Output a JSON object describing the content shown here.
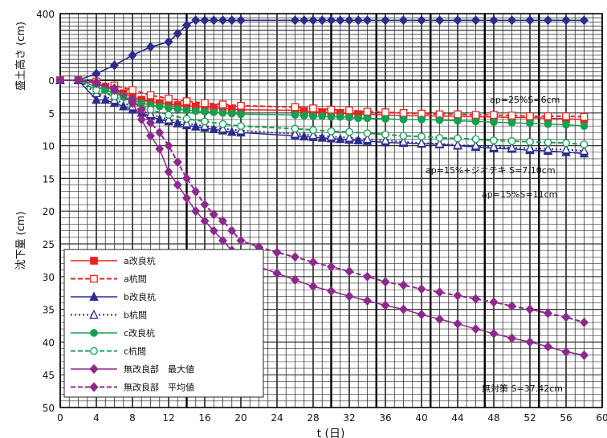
{
  "chart_data": [
    {
      "type": "line",
      "panel": "upper",
      "ylabel": "盛土高さ (cm)",
      "ylim": [
        0,
        400
      ],
      "yticks": [
        "400",
        "0"
      ],
      "series": [
        {
          "color": "#2c2c8c",
          "marker": "diamond",
          "x": [
            0,
            2,
            4,
            6,
            8,
            10,
            12,
            13,
            14,
            15,
            16,
            17,
            18,
            19,
            20,
            26,
            27,
            28,
            29,
            30,
            31,
            32,
            33,
            34,
            36,
            38,
            40,
            42,
            44,
            46,
            48,
            50,
            52,
            54,
            56,
            58
          ],
          "values": [
            0,
            0,
            40,
            90,
            150,
            200,
            230,
            280,
            330,
            360,
            360,
            360,
            360,
            360,
            360,
            360,
            360,
            360,
            360,
            360,
            360,
            360,
            360,
            360,
            360,
            360,
            360,
            360,
            360,
            360,
            360,
            360,
            360,
            360,
            360,
            360
          ]
        }
      ]
    },
    {
      "type": "line",
      "panel": "lower",
      "xlabel": "t (日)",
      "ylabel": "沈下量 (cm)",
      "xlim": [
        0,
        60
      ],
      "ylim": [
        0,
        50
      ],
      "xticks": [
        "0",
        "4",
        "8",
        "12",
        "16",
        "20",
        "24",
        "28",
        "32",
        "36",
        "40",
        "44",
        "48",
        "52",
        "56",
        "60"
      ],
      "yticks": [
        "0",
        "5",
        "10",
        "15",
        "20",
        "25",
        "30",
        "35",
        "40",
        "45",
        "50"
      ],
      "grid": true,
      "legend_position": "lower-left",
      "series": [
        {
          "name": "a改良杭",
          "color": "#e8231e",
          "style": "solid",
          "marker": "square",
          "x": [
            0,
            2,
            4,
            5,
            6,
            7,
            8,
            9,
            10,
            11,
            12,
            13,
            14,
            15,
            16,
            17,
            18,
            19,
            20,
            26,
            27,
            28,
            29,
            30,
            31,
            32,
            33,
            34,
            36,
            38,
            40,
            42,
            44,
            46,
            48,
            50,
            52,
            54,
            56,
            58
          ],
          "values": [
            0,
            0,
            0.5,
            1.0,
            1.5,
            2.0,
            2.5,
            3.0,
            3.3,
            3.5,
            3.7,
            3.8,
            3.9,
            4.0,
            4.1,
            4.2,
            4.3,
            4.4,
            4.5,
            4.6,
            4.7,
            4.8,
            4.9,
            5.0,
            5.0,
            5.1,
            5.2,
            5.2,
            5.3,
            5.4,
            5.4,
            5.5,
            5.5,
            5.6,
            5.6,
            5.7,
            5.7,
            5.8,
            5.9,
            6.0
          ]
        },
        {
          "name": "a杭間",
          "color": "#e8231e",
          "style": "dashed",
          "marker": "open-square",
          "x": [
            0,
            2,
            4,
            6,
            8,
            10,
            12,
            14,
            16,
            18,
            20,
            26,
            28,
            30,
            32,
            34,
            36,
            38,
            40,
            42,
            44,
            46,
            48,
            50,
            52,
            54,
            56,
            58
          ],
          "values": [
            0,
            0,
            0.2,
            0.8,
            1.5,
            2.3,
            2.8,
            3.2,
            3.5,
            3.7,
            3.9,
            4.1,
            4.3,
            4.5,
            4.6,
            4.8,
            4.9,
            5.0,
            5.1,
            5.2,
            5.2,
            5.3,
            5.3,
            5.4,
            5.5,
            5.5,
            5.5,
            5.6
          ]
        },
        {
          "name": "b改良杭",
          "color": "#2c2c8c",
          "style": "solid",
          "marker": "triangle",
          "x": [
            0,
            2,
            4,
            5,
            6,
            7,
            8,
            9,
            10,
            11,
            12,
            13,
            14,
            15,
            16,
            17,
            18,
            19,
            20,
            26,
            27,
            28,
            29,
            30,
            31,
            32,
            33,
            34,
            36,
            38,
            40,
            42,
            44,
            46,
            48,
            50,
            52,
            54,
            56,
            58
          ],
          "values": [
            0,
            0,
            3.0,
            3.0,
            3.5,
            4.0,
            4.5,
            5.0,
            5.5,
            6.0,
            6.3,
            6.6,
            6.9,
            7.1,
            7.3,
            7.5,
            7.7,
            7.9,
            8.0,
            8.5,
            8.6,
            8.7,
            8.8,
            8.9,
            9.0,
            9.1,
            9.2,
            9.3,
            9.5,
            9.6,
            9.7,
            9.8,
            10.0,
            10.2,
            10.4,
            10.5,
            10.7,
            10.8,
            11.0,
            11.2
          ]
        },
        {
          "name": "b杭間",
          "color": "#2c2c8c",
          "style": "dotted",
          "marker": "open-triangle",
          "x": [
            0,
            2,
            4,
            6,
            8,
            10,
            12,
            14,
            16,
            18,
            20,
            26,
            28,
            30,
            32,
            34,
            36,
            38,
            40,
            42,
            44,
            46,
            48,
            50,
            52,
            54,
            56,
            58
          ],
          "values": [
            0,
            0,
            2.0,
            3.0,
            4.0,
            5.2,
            6.0,
            6.6,
            7.0,
            7.4,
            7.7,
            8.2,
            8.4,
            8.6,
            8.8,
            9.0,
            9.2,
            9.4,
            9.6,
            9.7,
            9.9,
            10.0,
            10.2,
            10.3,
            10.4,
            10.5,
            10.6,
            10.8
          ]
        },
        {
          "name": "c改良杭",
          "color": "#14a050",
          "style": "solid",
          "marker": "circle",
          "x": [
            0,
            2,
            4,
            5,
            6,
            7,
            8,
            9,
            10,
            11,
            12,
            13,
            14,
            15,
            16,
            17,
            18,
            19,
            20,
            26,
            27,
            28,
            29,
            30,
            31,
            32,
            33,
            34,
            36,
            38,
            40,
            42,
            44,
            46,
            48,
            50,
            52,
            54,
            56,
            58
          ],
          "values": [
            0,
            0,
            1.0,
            1.5,
            2.0,
            2.5,
            3.0,
            3.5,
            3.8,
            4.0,
            4.2,
            4.4,
            4.6,
            4.7,
            4.8,
            4.9,
            5.0,
            5.1,
            5.2,
            5.3,
            5.4,
            5.5,
            5.5,
            5.6,
            5.6,
            5.7,
            5.8,
            5.8,
            5.9,
            6.0,
            6.0,
            6.1,
            6.2,
            6.3,
            6.4,
            6.5,
            6.6,
            6.7,
            6.8,
            7.0
          ]
        },
        {
          "name": "c杭間",
          "color": "#14a050",
          "style": "dashed",
          "marker": "open-circle",
          "x": [
            0,
            2,
            4,
            6,
            8,
            10,
            12,
            14,
            16,
            18,
            20,
            26,
            28,
            30,
            32,
            34,
            36,
            38,
            40,
            42,
            44,
            46,
            48,
            50,
            52,
            54,
            56,
            58
          ],
          "values": [
            0,
            0,
            1.5,
            2.5,
            3.5,
            4.5,
            5.3,
            5.9,
            6.3,
            6.7,
            7.0,
            7.4,
            7.6,
            7.8,
            7.9,
            8.1,
            8.3,
            8.5,
            8.6,
            8.8,
            8.9,
            9.0,
            9.2,
            9.3,
            9.4,
            9.5,
            9.6,
            9.8
          ]
        },
        {
          "name": "無改良部　最大値",
          "color": "#8c2a8c",
          "style": "solid",
          "marker": "diamond",
          "x": [
            0,
            2,
            4,
            6,
            8,
            9,
            10,
            11,
            12,
            13,
            14,
            15,
            16,
            17,
            18,
            19,
            20,
            22,
            24,
            26,
            28,
            30,
            32,
            34,
            36,
            38,
            40,
            42,
            44,
            46,
            48,
            50,
            52,
            54,
            56,
            58
          ],
          "values": [
            0,
            0,
            0.5,
            1.5,
            3.5,
            6.0,
            8.5,
            10.5,
            14.0,
            16.0,
            18.0,
            20.0,
            21.5,
            23.0,
            24.5,
            26.0,
            27.0,
            28.5,
            29.5,
            30.5,
            31.5,
            32.2,
            33.0,
            33.7,
            34.4,
            35.0,
            35.8,
            36.5,
            37.2,
            38.0,
            38.7,
            39.4,
            40.0,
            40.7,
            41.5,
            42.0
          ]
        },
        {
          "name": "無改良部　平均値",
          "color": "#8c2a8c",
          "style": "dashed",
          "marker": "diamond",
          "x": [
            0,
            2,
            4,
            6,
            8,
            9,
            10,
            11,
            12,
            13,
            14,
            15,
            16,
            17,
            18,
            19,
            20,
            22,
            24,
            26,
            28,
            30,
            32,
            34,
            36,
            38,
            40,
            42,
            44,
            46,
            48,
            50,
            52,
            54,
            56,
            58
          ],
          "values": [
            0,
            0,
            0.3,
            1.2,
            3.0,
            4.5,
            6.5,
            8.0,
            10.0,
            12.5,
            15.0,
            17.0,
            19.0,
            20.5,
            21.5,
            23.0,
            24.5,
            25.5,
            26.3,
            27.0,
            27.8,
            28.5,
            29.2,
            30.0,
            30.8,
            31.3,
            31.9,
            32.4,
            32.9,
            33.4,
            33.9,
            34.5,
            35.0,
            35.6,
            36.2,
            37.0
          ]
        }
      ],
      "annotations": [
        "ap=25%S=6cm",
        "ap=15%+ジオテキ S=7.10cm",
        "ap=15%S=11cm",
        "無対策 S=37.42cm"
      ]
    }
  ]
}
